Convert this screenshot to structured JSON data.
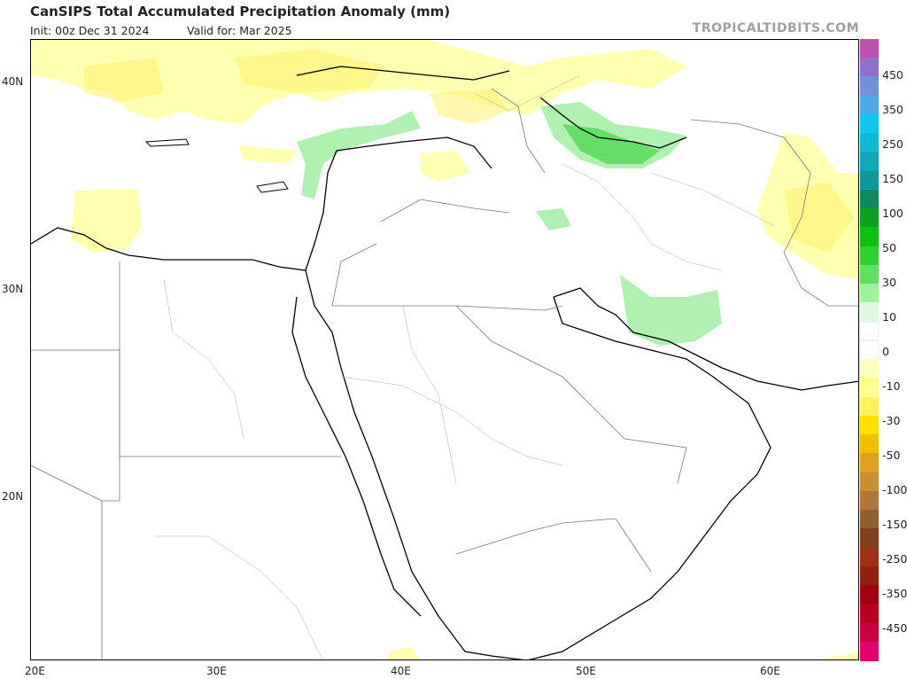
{
  "header": {
    "title": "CanSIPS Total Accumulated Precipitation Anomaly (mm)",
    "init": "Init: 00z Dec 31 2024",
    "valid": "Valid for: Mar 2025",
    "brand": "TROPICALTIDBITS.COM"
  },
  "map": {
    "lat_labels": [
      "40N",
      "30N",
      "20N"
    ],
    "lon_labels": [
      "20E",
      "30E",
      "40E",
      "50E",
      "60E"
    ]
  },
  "colorbar": {
    "labels": [
      "450",
      "350",
      "250",
      "150",
      "100",
      "50",
      "30",
      "10",
      "0",
      "-10",
      "-30",
      "-50",
      "-100",
      "-150",
      "-250",
      "-350",
      "-450"
    ],
    "colors": [
      "#c050b0",
      "#9070c8",
      "#7090d8",
      "#4fa8e8",
      "#10c8f0",
      "#10b8d8",
      "#10a8b8",
      "#109898",
      "#108860",
      "#10a020",
      "#10c010",
      "#30d030",
      "#60e060",
      "#a0f0a0",
      "#e0f8e0",
      "#ffffff",
      "#ffffff",
      "#ffffc0",
      "#ffff90",
      "#fff060",
      "#ffe000",
      "#f0c000",
      "#e0a020",
      "#c89030",
      "#b07838",
      "#906030",
      "#804020",
      "#a03018",
      "#902010",
      "#a00010",
      "#b80020",
      "#c80040",
      "#e00070"
    ]
  }
}
